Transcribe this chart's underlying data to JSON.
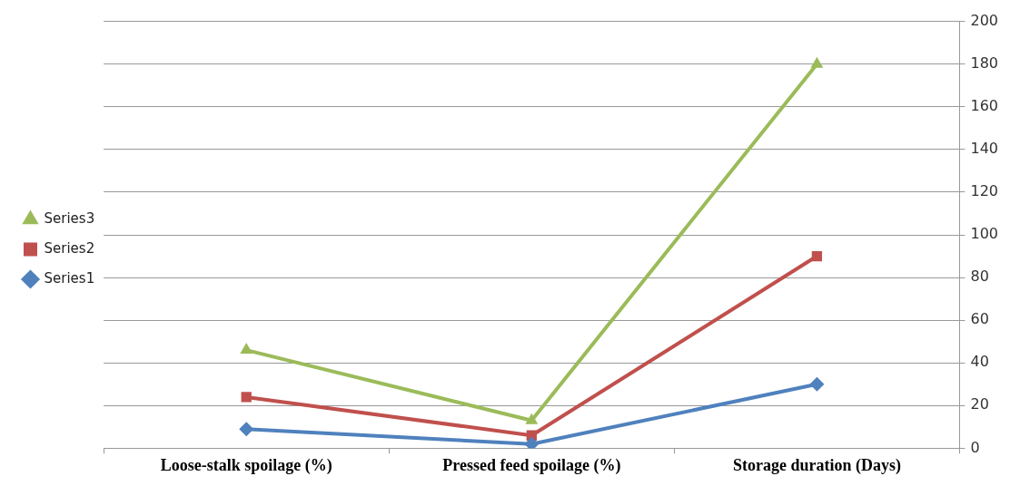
{
  "chart_data": {
    "type": "line",
    "categories": [
      "Loose-stalk spoilage (%)",
      "Pressed feed spoilage (%)",
      "Storage duration (Days)"
    ],
    "series": [
      {
        "name": "Series1",
        "color": "#4f81bd",
        "marker": "diamond",
        "values": [
          9,
          2,
          30
        ]
      },
      {
        "name": "Series2",
        "color": "#c0504d",
        "marker": "square",
        "values": [
          24,
          6,
          90
        ]
      },
      {
        "name": "Series3",
        "color": "#9bbb59",
        "marker": "triangle",
        "values": [
          46,
          13,
          180
        ]
      }
    ],
    "ylim": [
      0,
      200
    ],
    "yticks": [
      0,
      20,
      40,
      60,
      80,
      100,
      120,
      140,
      160,
      180,
      200
    ],
    "grid": "y",
    "legend": "left",
    "line_style": "solid"
  }
}
